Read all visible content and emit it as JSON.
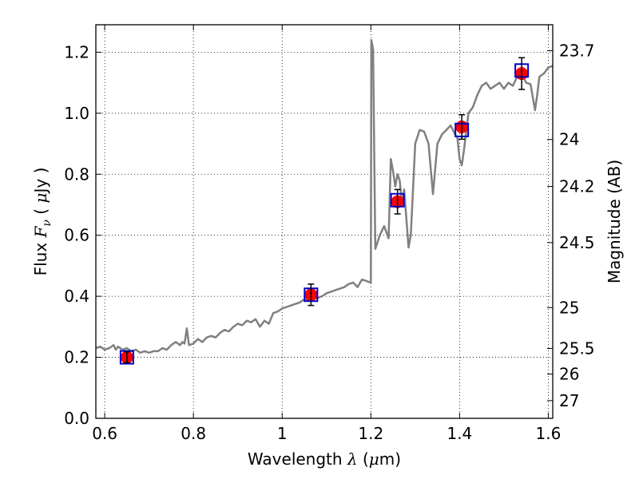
{
  "chart_data": {
    "type": "line",
    "title": "",
    "xlabel": "Wavelength  λ (μm)",
    "xlabel_parts": {
      "text": "Wavelength  ",
      "symbol": "λ",
      "unit_open": " (",
      "unit_symbol": "μ",
      "unit_rest": "m)"
    },
    "ylabel": "Flux  Fν  ( μJy )",
    "ylabel_parts": {
      "text": "Flux  ",
      "symbol": "F",
      "subscript": "ν",
      "unit_open": "  ( ",
      "unit_symbol": "μ",
      "unit_rest": "Jy )"
    },
    "y2label": "Magnitude (AB)",
    "xlim": [
      0.58,
      1.61
    ],
    "ylim": [
      0.0,
      1.29
    ],
    "grid": true,
    "grid_style": "dotted",
    "x_ticks": [
      {
        "value": 0.6,
        "label": "0.6"
      },
      {
        "value": 0.8,
        "label": "0.8"
      },
      {
        "value": 1.0,
        "label": "1"
      },
      {
        "value": 1.2,
        "label": "1.2"
      },
      {
        "value": 1.4,
        "label": "1.4"
      },
      {
        "value": 1.6,
        "label": "1.6"
      }
    ],
    "y_ticks": [
      {
        "value": 0.0,
        "label": "0.0"
      },
      {
        "value": 0.2,
        "label": "0.2"
      },
      {
        "value": 0.4,
        "label": "0.4"
      },
      {
        "value": 0.6,
        "label": "0.6"
      },
      {
        "value": 0.8,
        "label": "0.8"
      },
      {
        "value": 1.0,
        "label": "1.0"
      },
      {
        "value": 1.2,
        "label": "1.2"
      }
    ],
    "y2_ticks": [
      {
        "label": "23.7",
        "flux": 1.205
      },
      {
        "label": "24",
        "flux": 0.914
      },
      {
        "label": "24.2",
        "flux": 0.76
      },
      {
        "label": "24.5",
        "flux": 0.576
      },
      {
        "label": "25",
        "flux": 0.363
      },
      {
        "label": "25.5",
        "flux": 0.229
      },
      {
        "label": "26",
        "flux": 0.145
      },
      {
        "label": "27",
        "flux": 0.058
      }
    ],
    "series": [
      {
        "kind": "spectrum",
        "color": "#808080",
        "points": [
          [
            0.58,
            0.23
          ],
          [
            0.59,
            0.235
          ],
          [
            0.6,
            0.225
          ],
          [
            0.61,
            0.23
          ],
          [
            0.62,
            0.24
          ],
          [
            0.625,
            0.225
          ],
          [
            0.63,
            0.235
          ],
          [
            0.64,
            0.225
          ],
          [
            0.65,
            0.23
          ],
          [
            0.66,
            0.22
          ],
          [
            0.67,
            0.225
          ],
          [
            0.68,
            0.215
          ],
          [
            0.69,
            0.22
          ],
          [
            0.7,
            0.215
          ],
          [
            0.71,
            0.22
          ],
          [
            0.72,
            0.22
          ],
          [
            0.73,
            0.23
          ],
          [
            0.74,
            0.225
          ],
          [
            0.75,
            0.24
          ],
          [
            0.76,
            0.25
          ],
          [
            0.77,
            0.24
          ],
          [
            0.775,
            0.25
          ],
          [
            0.78,
            0.245
          ],
          [
            0.785,
            0.295
          ],
          [
            0.79,
            0.24
          ],
          [
            0.8,
            0.245
          ],
          [
            0.81,
            0.26
          ],
          [
            0.82,
            0.25
          ],
          [
            0.83,
            0.265
          ],
          [
            0.84,
            0.27
          ],
          [
            0.85,
            0.265
          ],
          [
            0.86,
            0.28
          ],
          [
            0.87,
            0.29
          ],
          [
            0.88,
            0.285
          ],
          [
            0.89,
            0.3
          ],
          [
            0.9,
            0.31
          ],
          [
            0.91,
            0.305
          ],
          [
            0.92,
            0.32
          ],
          [
            0.93,
            0.315
          ],
          [
            0.94,
            0.325
          ],
          [
            0.95,
            0.3
          ],
          [
            0.96,
            0.32
          ],
          [
            0.97,
            0.31
          ],
          [
            0.98,
            0.345
          ],
          [
            0.99,
            0.35
          ],
          [
            1.0,
            0.36
          ],
          [
            1.01,
            0.365
          ],
          [
            1.02,
            0.37
          ],
          [
            1.03,
            0.375
          ],
          [
            1.04,
            0.38
          ],
          [
            1.05,
            0.39
          ],
          [
            1.06,
            0.385
          ],
          [
            1.07,
            0.39
          ],
          [
            1.08,
            0.395
          ],
          [
            1.09,
            0.4
          ],
          [
            1.1,
            0.41
          ],
          [
            1.11,
            0.415
          ],
          [
            1.12,
            0.42
          ],
          [
            1.13,
            0.425
          ],
          [
            1.14,
            0.43
          ],
          [
            1.15,
            0.44
          ],
          [
            1.16,
            0.445
          ],
          [
            1.17,
            0.43
          ],
          [
            1.18,
            0.455
          ],
          [
            1.19,
            0.45
          ],
          [
            1.2,
            0.445
          ],
          [
            1.201,
            1.24
          ],
          [
            1.205,
            1.21
          ],
          [
            1.21,
            0.555
          ],
          [
            1.22,
            0.6
          ],
          [
            1.23,
            0.63
          ],
          [
            1.24,
            0.59
          ],
          [
            1.245,
            0.85
          ],
          [
            1.25,
            0.81
          ],
          [
            1.255,
            0.76
          ],
          [
            1.26,
            0.8
          ],
          [
            1.265,
            0.78
          ],
          [
            1.27,
            0.7
          ],
          [
            1.275,
            0.75
          ],
          [
            1.285,
            0.56
          ],
          [
            1.29,
            0.6
          ],
          [
            1.3,
            0.9
          ],
          [
            1.31,
            0.945
          ],
          [
            1.32,
            0.94
          ],
          [
            1.33,
            0.9
          ],
          [
            1.34,
            0.735
          ],
          [
            1.35,
            0.9
          ],
          [
            1.36,
            0.93
          ],
          [
            1.37,
            0.945
          ],
          [
            1.38,
            0.96
          ],
          [
            1.39,
            0.93
          ],
          [
            1.395,
            0.92
          ],
          [
            1.4,
            0.85
          ],
          [
            1.405,
            0.83
          ],
          [
            1.41,
            0.88
          ],
          [
            1.42,
            1.0
          ],
          [
            1.43,
            1.02
          ],
          [
            1.44,
            1.06
          ],
          [
            1.45,
            1.09
          ],
          [
            1.46,
            1.1
          ],
          [
            1.47,
            1.08
          ],
          [
            1.48,
            1.09
          ],
          [
            1.49,
            1.1
          ],
          [
            1.5,
            1.08
          ],
          [
            1.51,
            1.1
          ],
          [
            1.52,
            1.09
          ],
          [
            1.53,
            1.12
          ],
          [
            1.54,
            1.13
          ],
          [
            1.55,
            1.1
          ],
          [
            1.56,
            1.095
          ],
          [
            1.57,
            1.01
          ],
          [
            1.575,
            1.06
          ],
          [
            1.58,
            1.12
          ],
          [
            1.59,
            1.13
          ],
          [
            1.6,
            1.15
          ],
          [
            1.61,
            1.155
          ]
        ]
      },
      {
        "kind": "model_photometry",
        "marker": "open-square",
        "color": "#0000cc",
        "points": [
          [
            0.65,
            0.2
          ],
          [
            1.065,
            0.405
          ],
          [
            1.26,
            0.715
          ],
          [
            1.405,
            0.945
          ],
          [
            1.54,
            1.14
          ]
        ]
      },
      {
        "kind": "observed_photometry",
        "marker": "filled-circle",
        "color": "#ff0000",
        "errorbar_color": "#000000",
        "points": [
          {
            "x": 0.65,
            "y": 0.2,
            "err": 0.018
          },
          {
            "x": 1.065,
            "y": 0.405,
            "err": 0.035
          },
          {
            "x": 1.26,
            "y": 0.71,
            "err": 0.04
          },
          {
            "x": 1.405,
            "y": 0.955,
            "err": 0.04
          },
          {
            "x": 1.54,
            "y": 1.13,
            "err": 0.052
          }
        ]
      }
    ]
  }
}
